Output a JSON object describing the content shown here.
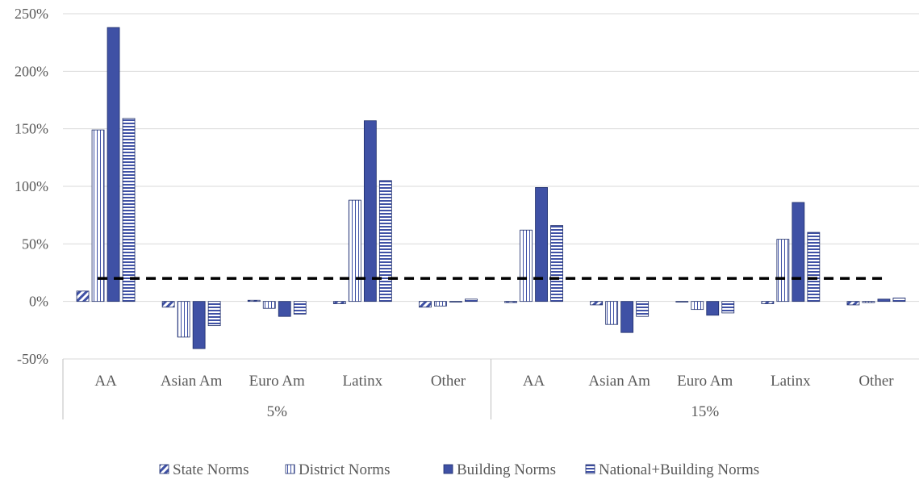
{
  "chart_data": {
    "type": "bar",
    "y_ticks": [
      "250%",
      "200%",
      "150%",
      "100%",
      "50%",
      "0%",
      "-50%"
    ],
    "ylim": [
      -50,
      250
    ],
    "groups": [
      {
        "label": "5%",
        "categories": [
          "AA",
          "Asian Am",
          "Euro Am",
          "Latinx",
          "Other"
        ]
      },
      {
        "label": "15%",
        "categories": [
          "AA",
          "Asian Am",
          "Euro Am",
          "Latinx",
          "Other"
        ]
      }
    ],
    "series": [
      {
        "name": "State Norms",
        "pattern": "diagonal",
        "values": [
          9,
          -5,
          1,
          -2,
          -5,
          -1,
          -3,
          0,
          -2,
          -3
        ]
      },
      {
        "name": "District Norms",
        "pattern": "vertical",
        "values": [
          149,
          -31,
          -6,
          88,
          -4,
          62,
          -20,
          -7,
          54,
          -1
        ]
      },
      {
        "name": "Building Norms",
        "pattern": "solid",
        "values": [
          238,
          -41,
          -13,
          157,
          0,
          99,
          -27,
          -12,
          86,
          2
        ]
      },
      {
        "name": "National+Building Norms",
        "pattern": "horizontal",
        "values": [
          159,
          -21,
          -11,
          105,
          2,
          66,
          -13,
          -10,
          60,
          3
        ]
      }
    ],
    "reference_line": {
      "value": 20,
      "style": "dashed"
    },
    "grid": true,
    "legend_position": "bottom",
    "colors": {
      "bar_fill": "#3f51a5",
      "bar_stroke": "#1f2e6b",
      "grid": "#d9d9d9",
      "axis": "#bfbfbf",
      "reference": "#000000"
    }
  }
}
